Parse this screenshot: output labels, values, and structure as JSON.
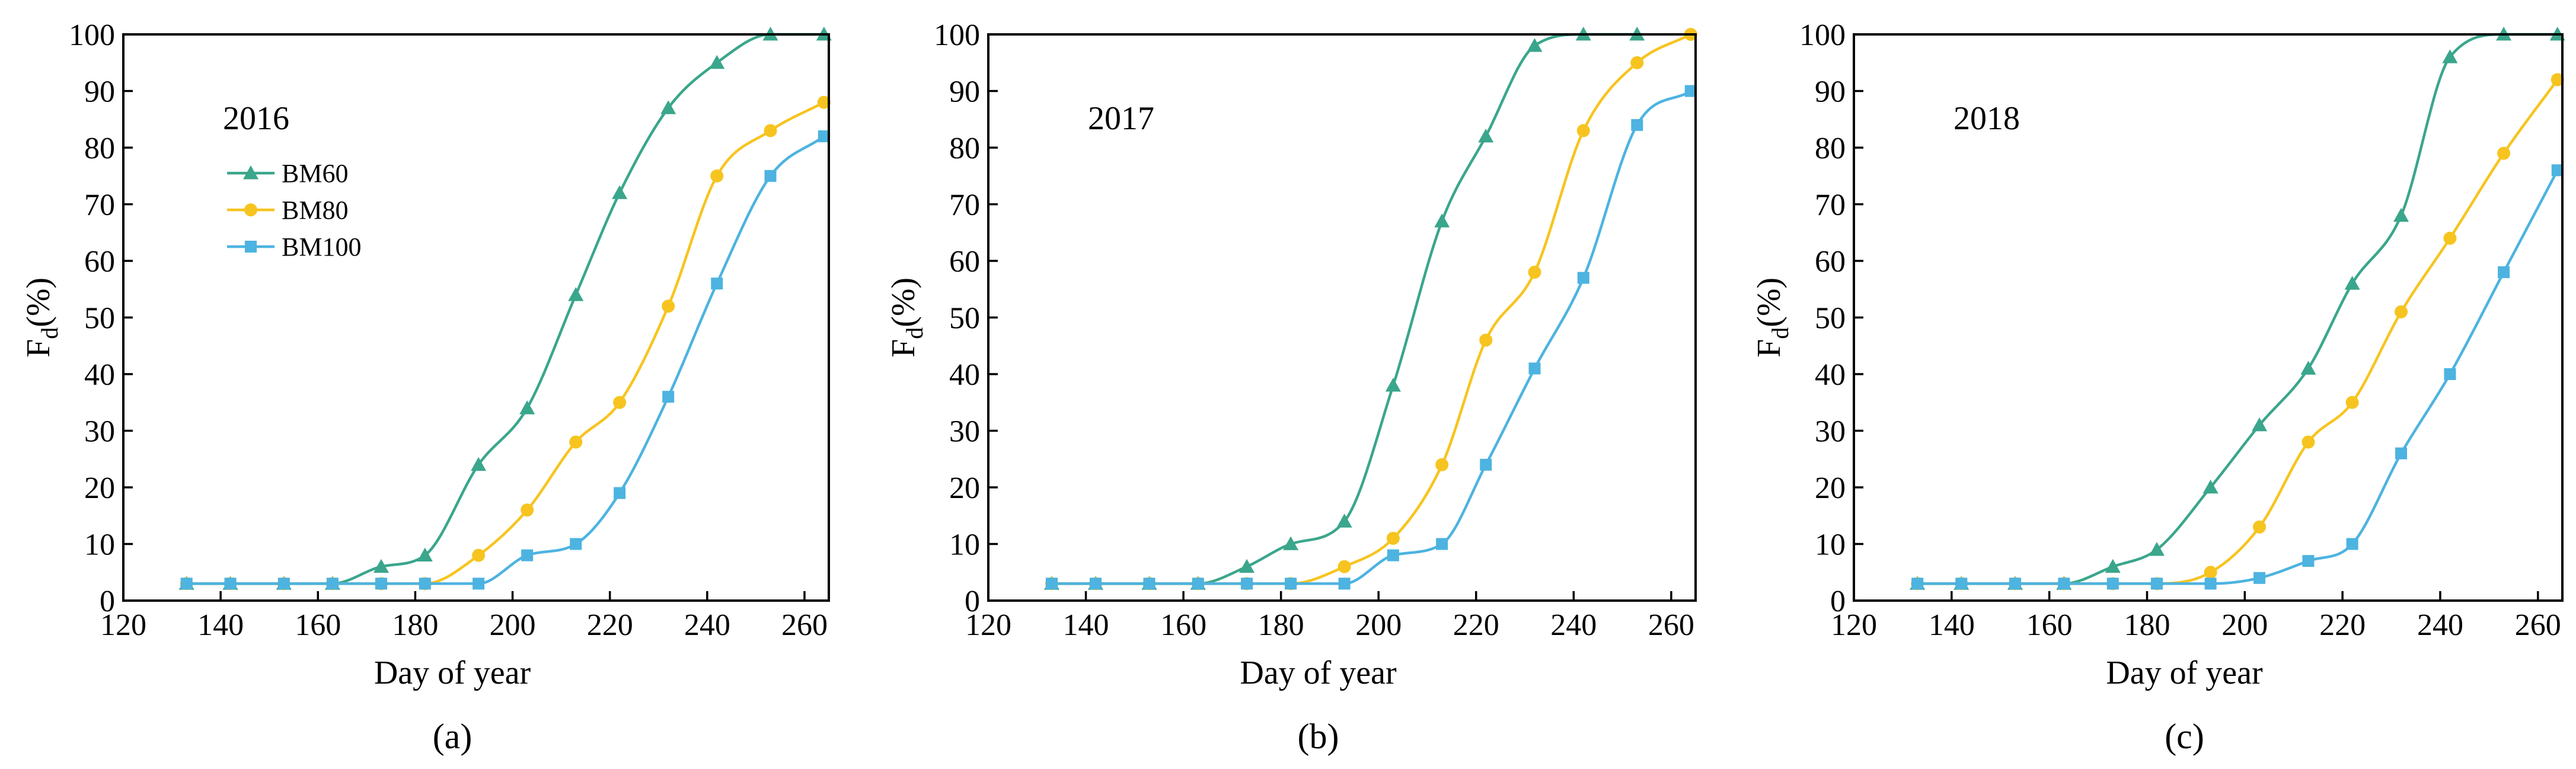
{
  "chart_data": [
    {
      "type": "line",
      "panel_label": "(a)",
      "year_label": "2016",
      "xlabel": "Day of year",
      "ylabel_main": "F",
      "ylabel_sub": "d",
      "ylabel_tail": "(%)",
      "xlim": [
        120,
        265
      ],
      "ylim": [
        0,
        100
      ],
      "xticks": [
        120,
        140,
        160,
        180,
        200,
        220,
        240,
        260
      ],
      "yticks": [
        0,
        10,
        20,
        30,
        40,
        50,
        60,
        70,
        80,
        90,
        100
      ],
      "x": [
        133,
        142,
        153,
        163,
        173,
        182,
        193,
        203,
        213,
        222,
        232,
        242,
        253,
        264
      ],
      "legend_visible": true,
      "series": [
        {
          "name": "BM60",
          "color": "#3aa68b",
          "marker": "triangle",
          "values": [
            3,
            3,
            3,
            3,
            6,
            8,
            24,
            34,
            54,
            72,
            87,
            95,
            100,
            100
          ]
        },
        {
          "name": "BM80",
          "color": "#f7c41f",
          "marker": "circle",
          "values": [
            3,
            3,
            3,
            3,
            3,
            3,
            8,
            16,
            28,
            35,
            52,
            75,
            83,
            88
          ]
        },
        {
          "name": "BM100",
          "color": "#4db3e0",
          "marker": "square",
          "values": [
            3,
            3,
            3,
            3,
            3,
            3,
            3,
            8,
            10,
            19,
            36,
            56,
            75,
            82
          ]
        }
      ]
    },
    {
      "type": "line",
      "panel_label": "(b)",
      "year_label": "2017",
      "xlabel": "Day of year",
      "ylabel_main": "F",
      "ylabel_sub": "d",
      "ylabel_tail": "(%)",
      "xlim": [
        120,
        265
      ],
      "ylim": [
        0,
        100
      ],
      "xticks": [
        120,
        140,
        160,
        180,
        200,
        220,
        240,
        260
      ],
      "yticks": [
        0,
        10,
        20,
        30,
        40,
        50,
        60,
        70,
        80,
        90,
        100
      ],
      "x": [
        133,
        142,
        153,
        163,
        173,
        182,
        193,
        203,
        213,
        222,
        232,
        242,
        253,
        264
      ],
      "legend_visible": false,
      "series": [
        {
          "name": "BM60",
          "color": "#3aa68b",
          "marker": "triangle",
          "values": [
            3,
            3,
            3,
            3,
            6,
            10,
            14,
            38,
            67,
            82,
            98,
            100,
            100,
            null
          ]
        },
        {
          "name": "BM80",
          "color": "#f7c41f",
          "marker": "circle",
          "values": [
            3,
            3,
            3,
            3,
            3,
            3,
            6,
            11,
            24,
            46,
            58,
            83,
            95,
            100
          ]
        },
        {
          "name": "BM100",
          "color": "#4db3e0",
          "marker": "square",
          "values": [
            3,
            3,
            3,
            3,
            3,
            3,
            3,
            8,
            10,
            24,
            41,
            57,
            84,
            90
          ]
        }
      ]
    },
    {
      "type": "line",
      "panel_label": "(c)",
      "year_label": "2018",
      "xlabel": "Day of year",
      "ylabel_main": "F",
      "ylabel_sub": "d",
      "ylabel_tail": "(%)",
      "xlim": [
        120,
        265
      ],
      "ylim": [
        0,
        100
      ],
      "xticks": [
        120,
        140,
        160,
        180,
        200,
        220,
        240,
        260
      ],
      "yticks": [
        0,
        10,
        20,
        30,
        40,
        50,
        60,
        70,
        80,
        90,
        100
      ],
      "x": [
        133,
        142,
        153,
        163,
        173,
        182,
        193,
        203,
        213,
        222,
        232,
        242,
        253,
        264
      ],
      "legend_visible": false,
      "series": [
        {
          "name": "BM60",
          "color": "#3aa68b",
          "marker": "triangle",
          "values": [
            3,
            3,
            3,
            3,
            6,
            9,
            20,
            31,
            41,
            56,
            68,
            96,
            100,
            100
          ]
        },
        {
          "name": "BM80",
          "color": "#f7c41f",
          "marker": "circle",
          "values": [
            3,
            3,
            3,
            3,
            3,
            3,
            5,
            13,
            28,
            35,
            51,
            64,
            79,
            92
          ]
        },
        {
          "name": "BM100",
          "color": "#4db3e0",
          "marker": "square",
          "values": [
            3,
            3,
            3,
            3,
            3,
            3,
            3,
            4,
            7,
            10,
            26,
            40,
            58,
            76
          ]
        }
      ]
    }
  ]
}
